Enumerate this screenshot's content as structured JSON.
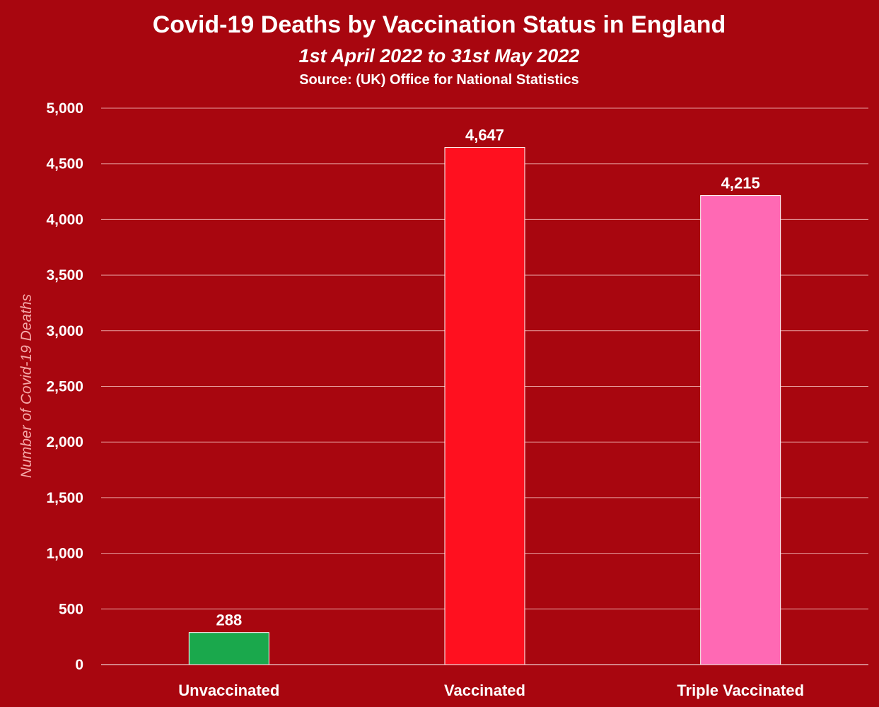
{
  "chart_data": {
    "type": "bar",
    "title": "Covid-19 Deaths by Vaccination Status in England",
    "subtitle": "1st April 2022 to 31st May 2022",
    "source": "Source: (UK) Office for National Statistics",
    "ylabel": "Number of Covid-19 Deaths",
    "categories": [
      "Unvaccinated",
      "Vaccinated",
      "Triple Vaccinated"
    ],
    "values": [
      288,
      4647,
      4215
    ],
    "data_labels": [
      "288",
      "4,647",
      "4,215"
    ],
    "bar_colors": [
      "#1aa84c",
      "#ff101f",
      "#ff69b4"
    ],
    "ylim": [
      0,
      5000
    ],
    "yticks": [
      0,
      500,
      1000,
      1500,
      2000,
      2500,
      3000,
      3500,
      4000,
      4500,
      5000
    ],
    "ytick_labels": [
      "0",
      "500",
      "1,000",
      "1,500",
      "2,000",
      "2,500",
      "3,000",
      "3,500",
      "4,000",
      "4,500",
      "5,000"
    ],
    "grid": true,
    "background_color": "#a8060f"
  }
}
